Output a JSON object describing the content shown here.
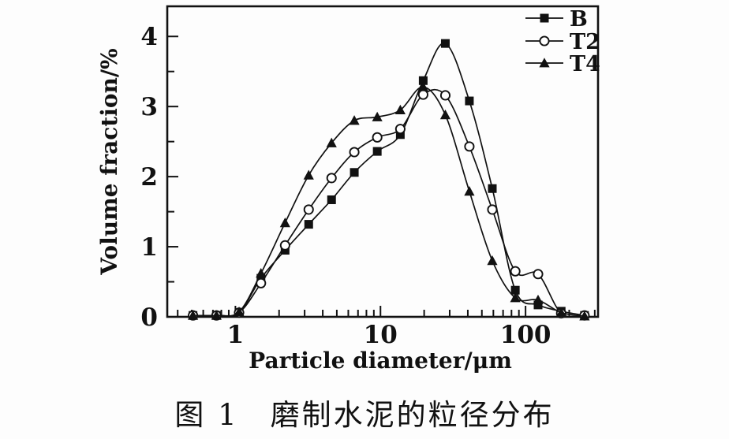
{
  "caption": "图 1　磨制水泥的粒径分布",
  "colors": {
    "foreground": "#111111",
    "background": "#fdfdfd",
    "marker_open_fill": "#ffffff"
  },
  "chart_data": {
    "type": "line",
    "title": "",
    "xlabel": "Particle diameter/μm",
    "ylabel": "Volume fraction/%",
    "x_scale": "log",
    "xlim": [
      0.339,
      316
    ],
    "ylim": [
      0,
      4.43
    ],
    "x_tick_labels": [
      "1",
      "10",
      "100"
    ],
    "x_ticks_major": [
      1,
      10,
      100
    ],
    "y_tick_labels": [
      "0",
      "1",
      "2",
      "3",
      "4"
    ],
    "y_ticks_major": [
      0,
      1,
      2,
      3,
      4
    ],
    "y_ticks_minor": [
      0.5,
      1.5,
      2.5,
      3.5
    ],
    "grid": false,
    "legend_position": "top-right-inside",
    "x": [
      0.51,
      0.74,
      1.06,
      1.5,
      2.2,
      3.2,
      4.6,
      6.6,
      9.5,
      13.7,
      19.7,
      28,
      41,
      59,
      85,
      122,
      176,
      255
    ],
    "series": [
      {
        "name": "B",
        "marker": "filled-square",
        "values": [
          0.02,
          0.02,
          0.06,
          0.55,
          0.95,
          1.32,
          1.67,
          2.06,
          2.36,
          2.6,
          3.37,
          3.9,
          3.08,
          1.83,
          0.38,
          0.17,
          0.08,
          0.02
        ]
      },
      {
        "name": "T2",
        "marker": "open-circle",
        "values": [
          0.02,
          0.02,
          0.06,
          0.48,
          1.02,
          1.53,
          1.98,
          2.35,
          2.56,
          2.68,
          3.17,
          3.16,
          2.43,
          1.53,
          0.65,
          0.61,
          0.05,
          0.02
        ]
      },
      {
        "name": "T4",
        "marker": "filled-triangle",
        "values": [
          0.02,
          0.02,
          0.07,
          0.62,
          1.34,
          2.02,
          2.48,
          2.8,
          2.85,
          2.95,
          3.28,
          2.88,
          1.79,
          0.8,
          0.27,
          0.24,
          0.06,
          0.01
        ]
      }
    ]
  }
}
